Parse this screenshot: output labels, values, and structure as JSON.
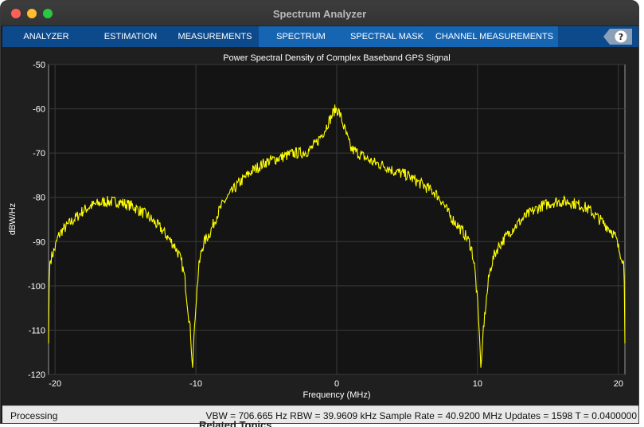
{
  "window": {
    "title": "Spectrum Analyzer"
  },
  "toolstrip": {
    "tabs": [
      {
        "label": "ANALYZER",
        "selected": false
      },
      {
        "label": "ESTIMATION",
        "selected": false
      },
      {
        "label": "MEASUREMENTS",
        "selected": false
      },
      {
        "label": "SPECTRUM",
        "selected": true
      },
      {
        "label": "SPECTRAL MASK",
        "selected": true
      },
      {
        "label": "CHANNEL MEASUREMENTS",
        "selected": true
      }
    ],
    "help_icon": "help-icon"
  },
  "chart_data": {
    "type": "line",
    "title": "Power Spectral Density of Complex Baseband GPS Signal",
    "xlabel": "Frequency (MHz)",
    "ylabel": "dBW/Hz",
    "xlim": [
      -20.46,
      20.46
    ],
    "ylim": [
      -120,
      -50
    ],
    "xticks": [
      -20,
      -10,
      0,
      10,
      20
    ],
    "yticks": [
      -50,
      -60,
      -70,
      -80,
      -90,
      -100,
      -110,
      -120
    ],
    "grid": true,
    "series": [
      {
        "color": "#ffff00",
        "x": [
          -20.46,
          -20.4,
          -20.2,
          -20.0,
          -19.8,
          -19.5,
          -19.0,
          -18.5,
          -18.0,
          -17.5,
          -17.0,
          -16.5,
          -16.0,
          -15.5,
          -15.0,
          -14.5,
          -14.0,
          -13.5,
          -13.0,
          -12.5,
          -12.0,
          -11.5,
          -11.2,
          -11.0,
          -10.8,
          -10.6,
          -10.4,
          -10.3,
          -10.23,
          -10.15,
          -10.0,
          -9.8,
          -9.6,
          -9.4,
          -9.0,
          -8.5,
          -8.0,
          -7.5,
          -7.0,
          -6.5,
          -6.0,
          -5.5,
          -5.0,
          -4.5,
          -4.0,
          -3.5,
          -3.0,
          -2.5,
          -2.0,
          -1.5,
          -1.0,
          -0.8,
          -0.6,
          -0.4,
          -0.2,
          0.0,
          0.2,
          0.4,
          0.6,
          0.8,
          1.0,
          1.5,
          2.0,
          2.5,
          3.0,
          3.5,
          4.0,
          4.5,
          5.0,
          5.5,
          6.0,
          6.5,
          7.0,
          7.5,
          8.0,
          8.5,
          9.0,
          9.4,
          9.6,
          9.8,
          10.0,
          10.15,
          10.23,
          10.3,
          10.4,
          10.6,
          10.8,
          11.0,
          11.2,
          11.5,
          12.0,
          12.5,
          13.0,
          13.5,
          14.0,
          14.5,
          15.0,
          15.5,
          16.0,
          16.5,
          17.0,
          17.5,
          18.0,
          18.5,
          19.0,
          19.5,
          19.8,
          20.0,
          20.2,
          20.4,
          20.46
        ],
        "y": [
          -113,
          -95,
          -93,
          -91.5,
          -89,
          -87.5,
          -86,
          -84.5,
          -83,
          -82,
          -81.5,
          -81,
          -81,
          -81,
          -81.5,
          -82,
          -83,
          -84,
          -85.5,
          -87,
          -89,
          -91,
          -93,
          -95,
          -98,
          -104,
          -110,
          -116,
          -118.5,
          -112,
          -104,
          -96,
          -92,
          -90,
          -88,
          -84,
          -81,
          -79,
          -77,
          -75.5,
          -74,
          -73,
          -72,
          -71.5,
          -71,
          -70.5,
          -70,
          -70,
          -69.5,
          -68,
          -65.5,
          -64.5,
          -63,
          -62,
          -60.5,
          -60,
          -61,
          -63,
          -65,
          -67,
          -69,
          -70,
          -71,
          -72,
          -72.5,
          -73,
          -74,
          -74.5,
          -75,
          -76,
          -77,
          -78,
          -79,
          -81,
          -84,
          -86,
          -88,
          -90,
          -92,
          -96,
          -104,
          -112,
          -118.5,
          -116,
          -110,
          -104,
          -98,
          -95,
          -93,
          -91,
          -89,
          -87,
          -85.5,
          -84,
          -83,
          -82,
          -81.5,
          -81,
          -81,
          -81,
          -81.5,
          -82,
          -83,
          -84.5,
          -86,
          -87.5,
          -89,
          -91.5,
          -93,
          -95,
          -113
        ]
      }
    ]
  },
  "status": {
    "left": "Processing",
    "right": "VBW = 706.665 Hz  RBW = 39.9609 kHz  Sample Rate = 40.9200 MHz  Updates = 1598  T = 0.0400000"
  },
  "background": {
    "text": "Related Topics"
  }
}
